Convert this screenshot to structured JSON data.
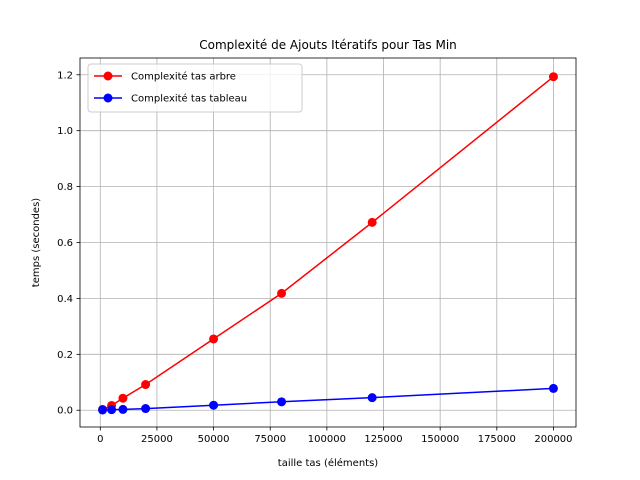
{
  "chart_data": {
    "type": "line",
    "title": "Complexité de Ajouts Itératifs pour Tas Min",
    "xlabel": "taille tas (éléments)",
    "ylabel": "temps (secondes)",
    "xlim": [
      -8950,
      209950
    ],
    "ylim": [
      -0.06,
      1.26
    ],
    "xticks": [
      0,
      25000,
      50000,
      75000,
      100000,
      125000,
      150000,
      175000,
      200000
    ],
    "yticks": [
      0.0,
      0.2,
      0.4,
      0.6,
      0.8,
      1.0,
      1.2
    ],
    "xtick_labels": [
      "0",
      "25000",
      "50000",
      "75000",
      "100000",
      "125000",
      "150000",
      "175000",
      "200000"
    ],
    "ytick_labels": [
      "0.0",
      "0.2",
      "0.4",
      "0.6",
      "0.8",
      "1.0",
      "1.2"
    ],
    "grid": true,
    "legend_position": "upper-left",
    "series": [
      {
        "name": "Complexité tas arbre",
        "color": "#ff0000",
        "x": [
          1000,
          5000,
          10000,
          20000,
          50000,
          80000,
          120000,
          200000
        ],
        "y": [
          0.003,
          0.017,
          0.043,
          0.092,
          0.255,
          0.418,
          0.672,
          1.193
        ]
      },
      {
        "name": "Complexité tas tableau",
        "color": "#0000ff",
        "x": [
          1000,
          5000,
          10000,
          20000,
          50000,
          80000,
          120000,
          200000
        ],
        "y": [
          0.001,
          0.002,
          0.003,
          0.006,
          0.018,
          0.03,
          0.045,
          0.078
        ]
      }
    ]
  }
}
